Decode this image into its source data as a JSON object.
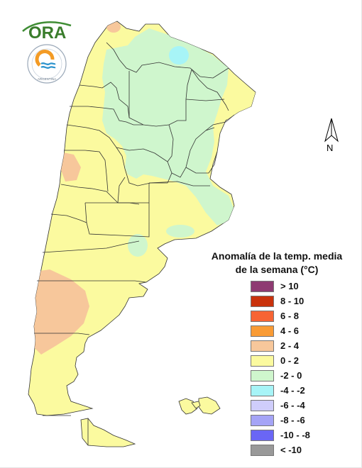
{
  "logo": {
    "ora_text": "ORA",
    "smn_text": "ARGENTINA"
  },
  "north_arrow": {
    "letter": "N"
  },
  "legend": {
    "title_line1": "Anomalía de la temp. media",
    "title_line2": "de la semana (°C)",
    "items": [
      {
        "label": "> 10",
        "color": "#8e3b72"
      },
      {
        "label": "8 - 10",
        "color": "#c9320c"
      },
      {
        "label": "6 - 8",
        "color": "#f76434"
      },
      {
        "label": "4 - 6",
        "color": "#f99b35"
      },
      {
        "label": "2 - 4",
        "color": "#f7c79b"
      },
      {
        "label": "0 - 2",
        "color": "#fbfa9f"
      },
      {
        "label": "-2 - 0",
        "color": "#cff6cd"
      },
      {
        "label": "-4 - -2",
        "color": "#a7f4f7"
      },
      {
        "label": "-6 - -4",
        "color": "#cfcdfb"
      },
      {
        "label": "-8 - -6",
        "color": "#a5a4f6"
      },
      {
        "label": "-10 - -8",
        "color": "#6a66f5"
      },
      {
        "label": "< -10",
        "color": "#999999"
      }
    ]
  },
  "colors": {
    "land_base": "#fbfa9f",
    "cool_zone": "#cff6cd",
    "cold_zone": "#a7f4f7",
    "warm_zone": "#f7c79b",
    "boundary": "#333333"
  }
}
